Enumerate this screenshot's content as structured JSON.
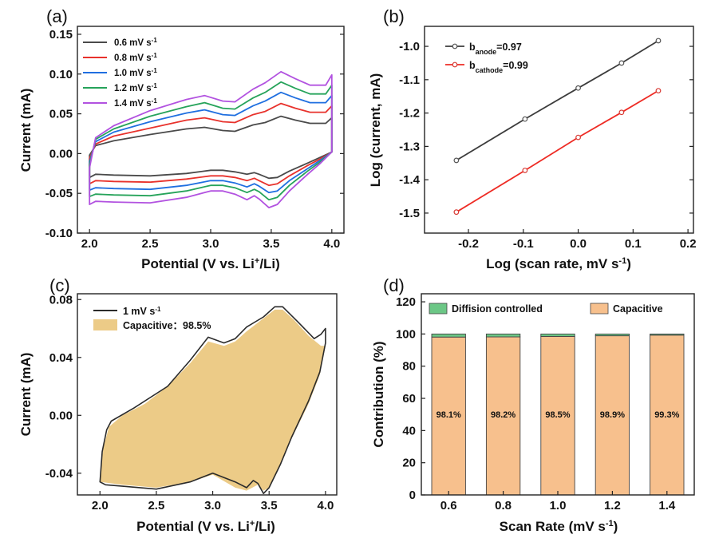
{
  "colors": {
    "c06": "#4a4a4a",
    "c08": "#e8322c",
    "c10": "#1f6fe0",
    "c12": "#26a35a",
    "c14": "#b252e0",
    "fit_black": "#3c3c3c",
    "fit_red": "#ee2b24",
    "capacitive": "#f7c08d",
    "capacitive_fill_c": "#e9c272",
    "diffusion": "#6cc786",
    "outline": "#2b2b2b"
  },
  "chart_data": [
    {
      "panel": "(a)",
      "type": "line",
      "xlabel": "Potential (V vs. Li⁺/Li)",
      "ylabel": "Current (mA)",
      "xlim": [
        1.9,
        4.1
      ],
      "ylim": [
        -0.1,
        0.16
      ],
      "xticks": [
        "2.0",
        "2.5",
        "3.0",
        "3.5",
        "4.0"
      ],
      "yticks": [
        "-0.10",
        "-0.05",
        "0.00",
        "0.05",
        "0.10",
        "0.15"
      ],
      "legend_position": "top-left",
      "series": [
        {
          "name": "0.6 mV s⁻¹",
          "color_key": "c06",
          "scale": 0.6,
          "upper": [
            [
              2.0,
              -0.002
            ],
            [
              2.05,
              0.01
            ],
            [
              2.2,
              0.016
            ],
            [
              2.5,
              0.024
            ],
            [
              2.8,
              0.031
            ],
            [
              2.95,
              0.033
            ],
            [
              3.1,
              0.029
            ],
            [
              3.2,
              0.028
            ],
            [
              3.35,
              0.036
            ],
            [
              3.45,
              0.039
            ],
            [
              3.58,
              0.047
            ],
            [
              3.7,
              0.042
            ],
            [
              3.82,
              0.038
            ],
            [
              3.95,
              0.038
            ],
            [
              4.0,
              0.045
            ]
          ],
          "lower": [
            [
              4.0,
              0.002
            ],
            [
              3.9,
              -0.005
            ],
            [
              3.8,
              -0.012
            ],
            [
              3.65,
              -0.022
            ],
            [
              3.55,
              -0.03
            ],
            [
              3.48,
              -0.031
            ],
            [
              3.4,
              -0.026
            ],
            [
              3.36,
              -0.024
            ],
            [
              3.3,
              -0.026
            ],
            [
              3.2,
              -0.023
            ],
            [
              3.1,
              -0.021
            ],
            [
              3.0,
              -0.021
            ],
            [
              2.8,
              -0.025
            ],
            [
              2.5,
              -0.028
            ],
            [
              2.2,
              -0.027
            ],
            [
              2.05,
              -0.026
            ],
            [
              2.0,
              -0.03
            ]
          ]
        },
        {
          "name": "0.8 mV s⁻¹",
          "color_key": "c08",
          "scale": 0.8,
          "upper": [
            [
              2.0,
              -0.006
            ],
            [
              2.05,
              0.012
            ],
            [
              2.2,
              0.022
            ],
            [
              2.5,
              0.032
            ],
            [
              2.8,
              0.042
            ],
            [
              2.95,
              0.045
            ],
            [
              3.1,
              0.04
            ],
            [
              3.2,
              0.039
            ],
            [
              3.35,
              0.049
            ],
            [
              3.45,
              0.053
            ],
            [
              3.58,
              0.063
            ],
            [
              3.7,
              0.057
            ],
            [
              3.82,
              0.052
            ],
            [
              3.95,
              0.052
            ],
            [
              4.0,
              0.06
            ]
          ],
          "lower": [
            [
              4.0,
              0.002
            ],
            [
              3.9,
              -0.007
            ],
            [
              3.8,
              -0.015
            ],
            [
              3.65,
              -0.028
            ],
            [
              3.55,
              -0.038
            ],
            [
              3.48,
              -0.04
            ],
            [
              3.4,
              -0.034
            ],
            [
              3.36,
              -0.031
            ],
            [
              3.3,
              -0.034
            ],
            [
              3.2,
              -0.03
            ],
            [
              3.1,
              -0.028
            ],
            [
              3.0,
              -0.028
            ],
            [
              2.8,
              -0.032
            ],
            [
              2.5,
              -0.036
            ],
            [
              2.2,
              -0.035
            ],
            [
              2.05,
              -0.034
            ],
            [
              2.0,
              -0.038
            ]
          ]
        },
        {
          "name": "1.0 mV s⁻¹",
          "color_key": "c10",
          "scale": 1.0,
          "upper": [
            [
              2.0,
              -0.01
            ],
            [
              2.05,
              0.015
            ],
            [
              2.2,
              0.027
            ],
            [
              2.5,
              0.04
            ],
            [
              2.8,
              0.051
            ],
            [
              2.95,
              0.055
            ],
            [
              3.1,
              0.049
            ],
            [
              3.2,
              0.048
            ],
            [
              3.35,
              0.06
            ],
            [
              3.45,
              0.066
            ],
            [
              3.58,
              0.077
            ],
            [
              3.7,
              0.07
            ],
            [
              3.82,
              0.064
            ],
            [
              3.95,
              0.064
            ],
            [
              4.0,
              0.073
            ]
          ],
          "lower": [
            [
              4.0,
              0.002
            ],
            [
              3.9,
              -0.009
            ],
            [
              3.8,
              -0.019
            ],
            [
              3.65,
              -0.034
            ],
            [
              3.55,
              -0.047
            ],
            [
              3.48,
              -0.049
            ],
            [
              3.4,
              -0.041
            ],
            [
              3.36,
              -0.038
            ],
            [
              3.3,
              -0.042
            ],
            [
              3.2,
              -0.037
            ],
            [
              3.1,
              -0.034
            ],
            [
              3.0,
              -0.034
            ],
            [
              2.8,
              -0.04
            ],
            [
              2.5,
              -0.045
            ],
            [
              2.2,
              -0.044
            ],
            [
              2.05,
              -0.043
            ],
            [
              2.0,
              -0.046
            ]
          ]
        },
        {
          "name": "1.2 mV s⁻¹",
          "color_key": "c12",
          "scale": 1.2,
          "upper": [
            [
              2.0,
              -0.014
            ],
            [
              2.05,
              0.018
            ],
            [
              2.2,
              0.031
            ],
            [
              2.5,
              0.047
            ],
            [
              2.8,
              0.059
            ],
            [
              2.95,
              0.064
            ],
            [
              3.1,
              0.057
            ],
            [
              3.2,
              0.056
            ],
            [
              3.35,
              0.07
            ],
            [
              3.45,
              0.077
            ],
            [
              3.58,
              0.09
            ],
            [
              3.7,
              0.082
            ],
            [
              3.82,
              0.075
            ],
            [
              3.95,
              0.075
            ],
            [
              4.0,
              0.086
            ]
          ],
          "lower": [
            [
              4.0,
              0.002
            ],
            [
              3.9,
              -0.011
            ],
            [
              3.8,
              -0.022
            ],
            [
              3.65,
              -0.04
            ],
            [
              3.55,
              -0.055
            ],
            [
              3.48,
              -0.058
            ],
            [
              3.4,
              -0.048
            ],
            [
              3.36,
              -0.045
            ],
            [
              3.3,
              -0.049
            ],
            [
              3.2,
              -0.043
            ],
            [
              3.1,
              -0.04
            ],
            [
              3.0,
              -0.04
            ],
            [
              2.8,
              -0.047
            ],
            [
              2.5,
              -0.053
            ],
            [
              2.2,
              -0.052
            ],
            [
              2.05,
              -0.051
            ],
            [
              2.0,
              -0.054
            ]
          ]
        },
        {
          "name": "1.4 mV s⁻¹",
          "color_key": "c14",
          "scale": 1.4,
          "upper": [
            [
              2.0,
              -0.018
            ],
            [
              2.05,
              0.02
            ],
            [
              2.2,
              0.035
            ],
            [
              2.5,
              0.054
            ],
            [
              2.8,
              0.068
            ],
            [
              2.95,
              0.073
            ],
            [
              3.1,
              0.066
            ],
            [
              3.2,
              0.065
            ],
            [
              3.35,
              0.081
            ],
            [
              3.45,
              0.089
            ],
            [
              3.58,
              0.103
            ],
            [
              3.7,
              0.094
            ],
            [
              3.82,
              0.086
            ],
            [
              3.95,
              0.086
            ],
            [
              4.0,
              0.099
            ]
          ],
          "lower": [
            [
              4.0,
              0.002
            ],
            [
              3.9,
              -0.013
            ],
            [
              3.8,
              -0.026
            ],
            [
              3.65,
              -0.047
            ],
            [
              3.55,
              -0.064
            ],
            [
              3.48,
              -0.068
            ],
            [
              3.4,
              -0.057
            ],
            [
              3.36,
              -0.053
            ],
            [
              3.3,
              -0.058
            ],
            [
              3.2,
              -0.051
            ],
            [
              3.1,
              -0.047
            ],
            [
              3.0,
              -0.047
            ],
            [
              2.8,
              -0.055
            ],
            [
              2.5,
              -0.062
            ],
            [
              2.2,
              -0.061
            ],
            [
              2.05,
              -0.06
            ],
            [
              2.0,
              -0.064
            ]
          ]
        }
      ]
    },
    {
      "panel": "(b)",
      "type": "line",
      "xlabel": "Log (scan rate, mV s⁻¹)",
      "ylabel": "Log (current, mA)",
      "xlim": [
        -0.28,
        0.21
      ],
      "ylim": [
        -1.56,
        -0.94
      ],
      "xticks": [
        "-0.2",
        "-0.1",
        "0.0",
        "0.1",
        "0.2"
      ],
      "yticks": [
        "-1.5",
        "-1.4",
        "-1.3",
        "-1.2",
        "-1.1",
        "-1.0"
      ],
      "legend_position": "top-left",
      "series": [
        {
          "name": "b_anode=0.97",
          "label_main": "b",
          "label_sub": "anode",
          "label_val": "=0.97",
          "color_key": "fit_black",
          "x": [
            -0.222,
            -0.097,
            0.0,
            0.079,
            0.146
          ],
          "y": [
            -1.342,
            -1.218,
            -1.125,
            -1.05,
            -0.983
          ]
        },
        {
          "name": "b_cathode=0.99",
          "label_main": "b",
          "label_sub": "cathode",
          "label_val": "=0.99",
          "color_key": "fit_red",
          "x": [
            -0.222,
            -0.097,
            0.0,
            0.079,
            0.146
          ],
          "y": [
            -1.497,
            -1.372,
            -1.273,
            -1.198,
            -1.133
          ]
        }
      ]
    },
    {
      "panel": "(c)",
      "type": "area",
      "xlabel": "Potential (V vs. Li⁺/Li)",
      "ylabel": "Current (mA)",
      "xlim": [
        1.8,
        4.1
      ],
      "ylim": [
        -0.055,
        0.084
      ],
      "xticks": [
        "2.0",
        "2.5",
        "3.0",
        "3.5",
        "4.0"
      ],
      "yticks": [
        "-0.04",
        "0.00",
        "0.04",
        "0.08"
      ],
      "legend_position": "top-left",
      "legend_line": "1 mV s⁻¹",
      "legend_fill": "Capacitive：98.5%",
      "outline_upper": [
        [
          2.0,
          -0.046
        ],
        [
          2.02,
          -0.025
        ],
        [
          2.06,
          -0.01
        ],
        [
          2.1,
          -0.004
        ],
        [
          2.3,
          0.005
        ],
        [
          2.6,
          0.02
        ],
        [
          2.8,
          0.038
        ],
        [
          2.96,
          0.054
        ],
        [
          3.1,
          0.05
        ],
        [
          3.2,
          0.053
        ],
        [
          3.3,
          0.061
        ],
        [
          3.45,
          0.068
        ],
        [
          3.55,
          0.075
        ],
        [
          3.62,
          0.075
        ],
        [
          3.75,
          0.065
        ],
        [
          3.9,
          0.053
        ],
        [
          3.96,
          0.056
        ],
        [
          4.0,
          0.06
        ],
        [
          4.0,
          0.05
        ]
      ],
      "outline_lower": [
        [
          4.0,
          0.05
        ],
        [
          3.95,
          0.03
        ],
        [
          3.85,
          0.01
        ],
        [
          3.7,
          -0.015
        ],
        [
          3.6,
          -0.034
        ],
        [
          3.5,
          -0.05
        ],
        [
          3.45,
          -0.054
        ],
        [
          3.4,
          -0.047
        ],
        [
          3.36,
          -0.045
        ],
        [
          3.3,
          -0.05
        ],
        [
          3.2,
          -0.046
        ],
        [
          3.0,
          -0.04
        ],
        [
          2.8,
          -0.046
        ],
        [
          2.5,
          -0.051
        ],
        [
          2.2,
          -0.049
        ],
        [
          2.05,
          -0.048
        ],
        [
          2.0,
          -0.046
        ]
      ],
      "fill_upper": [
        [
          2.0,
          -0.044
        ],
        [
          2.03,
          -0.022
        ],
        [
          2.08,
          -0.008
        ],
        [
          2.2,
          0.0
        ],
        [
          2.4,
          0.008
        ],
        [
          2.6,
          0.02
        ],
        [
          2.8,
          0.036
        ],
        [
          2.96,
          0.051
        ],
        [
          3.1,
          0.048
        ],
        [
          3.2,
          0.051
        ],
        [
          3.3,
          0.058
        ],
        [
          3.45,
          0.067
        ],
        [
          3.55,
          0.073
        ],
        [
          3.62,
          0.073
        ],
        [
          3.72,
          0.066
        ],
        [
          3.85,
          0.055
        ],
        [
          3.96,
          0.048
        ],
        [
          4.0,
          0.048
        ]
      ],
      "fill_lower": [
        [
          4.0,
          0.048
        ],
        [
          3.95,
          0.028
        ],
        [
          3.85,
          0.008
        ],
        [
          3.7,
          -0.016
        ],
        [
          3.6,
          -0.034
        ],
        [
          3.5,
          -0.05
        ],
        [
          3.45,
          -0.052
        ],
        [
          3.4,
          -0.048
        ],
        [
          3.3,
          -0.052
        ],
        [
          3.2,
          -0.05
        ],
        [
          3.0,
          -0.041
        ],
        [
          2.8,
          -0.046
        ],
        [
          2.5,
          -0.05
        ],
        [
          2.2,
          -0.048
        ],
        [
          2.0,
          -0.046
        ]
      ]
    },
    {
      "panel": "(d)",
      "type": "bar",
      "xlabel": "Scan Rate (mV s⁻¹)",
      "ylabel": "Contribution (%)",
      "ylim": [
        0,
        125
      ],
      "yticks": [
        "0",
        "20",
        "40",
        "60",
        "80",
        "100",
        "120"
      ],
      "categories": [
        "0.6",
        "0.8",
        "1.0",
        "1.2",
        "1.4"
      ],
      "legend_position": "top",
      "series": [
        {
          "name": "Capacitive",
          "color_key": "capacitive",
          "values": [
            98.1,
            98.2,
            98.5,
            98.9,
            99.3
          ]
        },
        {
          "name": "Diffision controlled",
          "color_key": "diffusion",
          "values": [
            1.9,
            1.8,
            1.5,
            1.1,
            0.7
          ]
        }
      ],
      "data_labels": [
        "98.1%",
        "98.2%",
        "98.5%",
        "98.9%",
        "99.3%"
      ]
    }
  ]
}
